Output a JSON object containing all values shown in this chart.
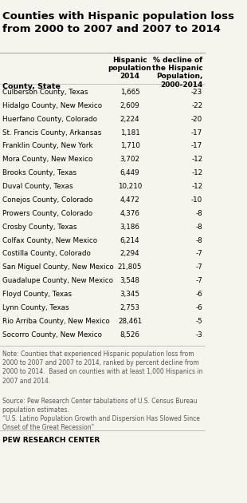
{
  "title": "Counties with Hispanic population loss\nfrom 2000 to 2007 and 2007 to 2014",
  "col_header_county": "County, State",
  "col_header_pop": "Hispanic\npopulation\n2014",
  "col_header_pct": "% decline of\nthe Hispanic\nPopulation,\n2000-2014",
  "rows": [
    [
      "Culberson County, Texas",
      "1,665",
      "-23"
    ],
    [
      "Hidalgo County, New Mexico",
      "2,609",
      "-22"
    ],
    [
      "Huerfano County, Colorado",
      "2,224",
      "-20"
    ],
    [
      "St. Francis County, Arkansas",
      "1,181",
      "-17"
    ],
    [
      "Franklin County, New York",
      "1,710",
      "-17"
    ],
    [
      "Mora County, New Mexico",
      "3,702",
      "-12"
    ],
    [
      "Brooks County, Texas",
      "6,449",
      "-12"
    ],
    [
      "Duval County, Texas",
      "10,210",
      "-12"
    ],
    [
      "Conejos County, Colorado",
      "4,472",
      "-10"
    ],
    [
      "Prowers County, Colorado",
      "4,376",
      "-8"
    ],
    [
      "Crosby County, Texas",
      "3,186",
      "-8"
    ],
    [
      "Colfax County, New Mexico",
      "6,214",
      "-8"
    ],
    [
      "Costilla County, Colorado",
      "2,294",
      "-7"
    ],
    [
      "San Miguel County, New Mexico",
      "21,805",
      "-7"
    ],
    [
      "Guadalupe County, New Mexico",
      "3,548",
      "-7"
    ],
    [
      "Floyd County, Texas",
      "3,345",
      "-6"
    ],
    [
      "Lynn County, Texas",
      "2,753",
      "-6"
    ],
    [
      "Rio Arriba County, New Mexico",
      "28,461",
      "-5"
    ],
    [
      "Socorro County, New Mexico",
      "8,526",
      "-3"
    ]
  ],
  "note_text": "Note: Counties that experienced Hispanic population loss from\n2000 to 2007 and 2007 to 2014, ranked by percent decline from\n2000 to 2014.  Based on counties with at least 1,000 Hispanics in\n2007 and 2014.",
  "source_text": "Source: Pew Research Center tabulations of U.S. Census Bureau\npopulation estimates.\n“U.S. Latino Population Growth and Dispersion Has Slowed Since\nOnset of the Great Recession”",
  "branding": "PEW RESEARCH CENTER",
  "bg_color": "#f5f5ee",
  "title_color": "#000000",
  "header_color": "#000000",
  "row_color": "#000000",
  "note_color": "#555555",
  "source_color": "#555555",
  "brand_color": "#000000"
}
